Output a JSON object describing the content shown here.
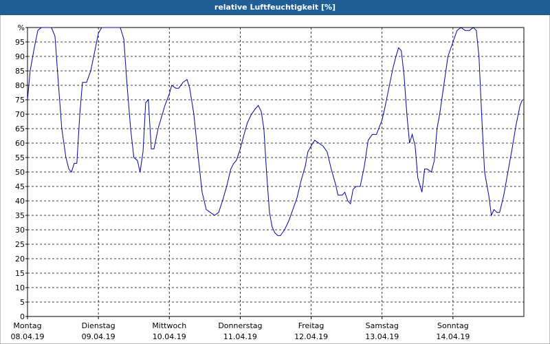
{
  "chart_data": {
    "type": "line",
    "title": "relative Luftfeuchtigkeit [%]",
    "x": [
      0,
      0.9,
      2.3,
      3.5,
      4.7,
      8.1,
      9.3,
      10.5,
      11.6,
      13.0,
      14.0,
      14.9,
      15.8,
      16.7,
      17.7,
      18.6,
      20.0,
      21.4,
      22.8,
      24.0,
      25.1,
      31.4,
      32.6,
      33.7,
      34.9,
      36.0,
      37.2,
      38.1,
      39.1,
      40.0,
      40.9,
      41.9,
      42.8,
      44.2,
      46.5,
      48.0,
      48.8,
      50.2,
      51.2,
      52.6,
      54.0,
      54.9,
      56.3,
      57.7,
      59.1,
      60.5,
      61.9,
      63.3,
      64.7,
      66.0,
      67.4,
      68.8,
      69.8,
      70.7,
      72.0,
      73.3,
      74.4,
      75.8,
      77.2,
      78.1,
      79.1,
      80.0,
      80.9,
      81.9,
      82.8,
      83.7,
      84.7,
      85.6,
      87.0,
      88.4,
      89.8,
      91.2,
      92.6,
      94.0,
      94.9,
      96.0,
      97.2,
      98.6,
      100.0,
      101.4,
      102.8,
      104.2,
      105.1,
      106.5,
      107.4,
      108.4,
      109.3,
      110.2,
      111.2,
      112.6,
      114.0,
      115.3,
      116.7,
      118.1,
      120.0,
      120.9,
      122.3,
      123.7,
      124.7,
      125.6,
      126.5,
      127.4,
      128.4,
      129.3,
      130.2,
      131.2,
      132.1,
      133.5,
      134.4,
      135.3,
      136.7,
      137.7,
      138.6,
      139.5,
      140.9,
      142.3,
      144.0,
      145.4,
      146.7,
      148.1,
      149.6,
      150.9,
      151.9,
      152.8,
      153.7,
      154.7,
      156.1,
      157.0,
      157.9,
      158.9,
      159.8,
      161.2,
      162.6,
      164.0,
      165.3,
      166.7,
      167.5
    ],
    "series": [
      {
        "color": "#0000a8",
        "values": [
          75,
          85,
          93,
          99,
          100,
          100,
          97,
          80,
          65,
          55,
          51,
          50,
          53,
          53,
          70,
          81,
          81,
          85,
          92,
          98,
          100,
          100,
          96,
          80,
          65,
          55,
          54,
          50,
          57,
          74,
          75,
          58,
          58,
          65,
          73,
          77,
          80,
          79,
          79,
          81,
          82,
          79,
          70,
          56,
          43,
          37,
          36,
          35,
          36,
          40,
          45,
          51,
          53,
          54,
          58,
          63,
          67,
          70,
          72,
          73,
          71,
          65,
          50,
          36,
          31,
          29,
          28,
          28,
          30,
          33,
          37,
          41,
          47,
          52,
          57,
          59,
          61,
          60,
          59,
          57,
          51,
          46,
          42,
          42,
          43,
          40,
          39,
          44,
          45,
          45,
          52,
          61,
          63,
          63,
          68,
          72,
          79,
          86,
          90,
          93,
          92,
          84,
          70,
          60,
          63,
          59,
          48,
          43,
          51,
          51,
          50,
          54,
          65,
          70,
          80,
          90,
          95,
          99,
          100,
          99,
          99,
          100,
          99,
          90,
          70,
          50,
          42,
          35,
          37,
          36,
          36,
          42,
          50,
          58,
          66,
          73,
          75
        ]
      }
    ],
    "xlim": [
      0,
      168
    ],
    "xticks": [
      {
        "value": 0,
        "label": "Montag"
      },
      {
        "value": 24,
        "label": "Dienstag"
      },
      {
        "value": 48,
        "label": "Mittwoch"
      },
      {
        "value": 72,
        "label": "Donnerstag"
      },
      {
        "value": 96,
        "label": "Freitag"
      },
      {
        "value": 120,
        "label": "Samstag"
      },
      {
        "value": 144,
        "label": "Sonntag"
      }
    ],
    "xtick_dates": [
      "08.04.19",
      "09.04.19",
      "10.04.19",
      "11.04.19",
      "12.04.19",
      "13.04.19",
      "14.04.19"
    ],
    "ylim": [
      0,
      100
    ],
    "yticks": [
      0,
      5,
      10,
      15,
      20,
      25,
      30,
      35,
      40,
      45,
      50,
      55,
      60,
      65,
      70,
      75,
      80,
      85,
      90,
      95,
      {
        "value": 100,
        "label": "%"
      }
    ],
    "grid": true
  }
}
